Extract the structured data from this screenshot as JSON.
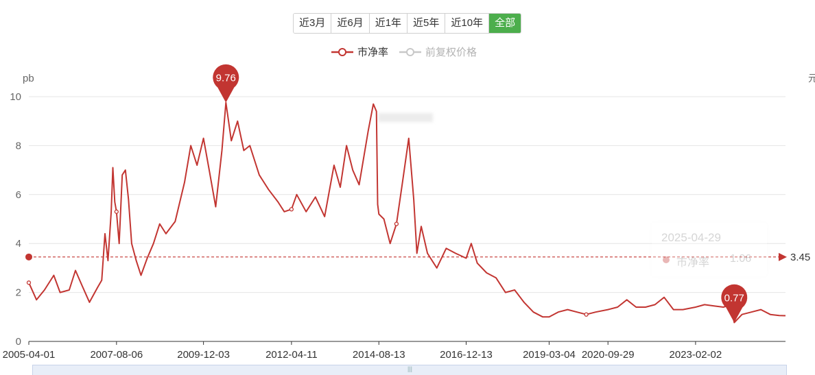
{
  "range_buttons": [
    {
      "label": "近3月",
      "active": false
    },
    {
      "label": "近6月",
      "active": false
    },
    {
      "label": "近1年",
      "active": false
    },
    {
      "label": "近5年",
      "active": false
    },
    {
      "label": "近10年",
      "active": false
    },
    {
      "label": "全部",
      "active": true
    }
  ],
  "legend": {
    "pb_label": "市净率",
    "price_label": "前复权价格"
  },
  "right_axis_fragment": "元",
  "tooltip": {
    "date": "2025-04-29",
    "series_name": "市净率",
    "value": "1.06"
  },
  "colors": {
    "series": "#c23531",
    "inactive": "#b3b3b3",
    "active_button": "#4cae4c",
    "grid": "#e4e4e4"
  },
  "chart_data": {
    "type": "line",
    "ylabel": "pb",
    "ylim": [
      0,
      10
    ],
    "yticks": [
      "0",
      "2",
      "4",
      "6",
      "8",
      "10"
    ],
    "x_tick_labels": [
      "2005-04-01",
      "2007-08-06",
      "2009-12-03",
      "2012-04-11",
      "2014-08-13",
      "2016-12-13",
      "2019-03-04",
      "2020-09-29",
      "2023-02-02"
    ],
    "x_range": [
      "2005-04-01",
      "2025-06-30"
    ],
    "grid": true,
    "legend_position": "top-center",
    "series": [
      {
        "name": "市净率",
        "points": [
          [
            "2005-04-01",
            2.4
          ],
          [
            "2005-06-15",
            1.7
          ],
          [
            "2005-09-01",
            2.1
          ],
          [
            "2005-12-01",
            2.7
          ],
          [
            "2006-02-01",
            2.0
          ],
          [
            "2006-05-01",
            2.1
          ],
          [
            "2006-07-01",
            2.9
          ],
          [
            "2006-09-01",
            2.3
          ],
          [
            "2006-11-15",
            1.6
          ],
          [
            "2007-02-01",
            2.2
          ],
          [
            "2007-03-15",
            2.5
          ],
          [
            "2007-04-15",
            4.4
          ],
          [
            "2007-05-15",
            3.3
          ],
          [
            "2007-06-15",
            5.3
          ],
          [
            "2007-07-01",
            7.1
          ],
          [
            "2007-07-20",
            5.7
          ],
          [
            "2007-08-06",
            5.3
          ],
          [
            "2007-09-01",
            4.0
          ],
          [
            "2007-10-01",
            6.8
          ],
          [
            "2007-11-01",
            7.0
          ],
          [
            "2007-12-01",
            5.8
          ],
          [
            "2008-01-01",
            4.0
          ],
          [
            "2008-02-15",
            3.3
          ],
          [
            "2008-04-01",
            2.7
          ],
          [
            "2008-06-01",
            3.4
          ],
          [
            "2008-08-01",
            4.0
          ],
          [
            "2008-10-01",
            4.8
          ],
          [
            "2008-12-01",
            4.4
          ],
          [
            "2009-03-01",
            4.9
          ],
          [
            "2009-06-01",
            6.5
          ],
          [
            "2009-08-01",
            8.0
          ],
          [
            "2009-10-01",
            7.2
          ],
          [
            "2009-12-03",
            8.3
          ],
          [
            "2010-02-01",
            6.9
          ],
          [
            "2010-04-01",
            5.5
          ],
          [
            "2010-06-01",
            7.8
          ],
          [
            "2010-07-10",
            9.76
          ],
          [
            "2010-09-01",
            8.2
          ],
          [
            "2010-11-01",
            9.0
          ],
          [
            "2011-01-01",
            7.8
          ],
          [
            "2011-03-01",
            8.0
          ],
          [
            "2011-06-01",
            6.8
          ],
          [
            "2011-09-01",
            6.2
          ],
          [
            "2011-12-01",
            5.7
          ],
          [
            "2012-02-01",
            5.3
          ],
          [
            "2012-04-11",
            5.4
          ],
          [
            "2012-06-01",
            6.0
          ],
          [
            "2012-09-01",
            5.3
          ],
          [
            "2012-12-01",
            5.9
          ],
          [
            "2013-03-01",
            5.1
          ],
          [
            "2013-06-01",
            7.2
          ],
          [
            "2013-08-01",
            6.3
          ],
          [
            "2013-10-01",
            8.0
          ],
          [
            "2013-12-01",
            7.0
          ],
          [
            "2014-02-01",
            6.4
          ],
          [
            "2014-05-01",
            8.6
          ],
          [
            "2014-06-20",
            9.7
          ],
          [
            "2014-07-20",
            9.4
          ],
          [
            "2014-08-01",
            5.6
          ],
          [
            "2014-08-13",
            5.2
          ],
          [
            "2014-10-01",
            5.0
          ],
          [
            "2014-12-01",
            4.0
          ],
          [
            "2015-02-01",
            4.8
          ],
          [
            "2015-04-01",
            6.5
          ],
          [
            "2015-06-01",
            8.3
          ],
          [
            "2015-07-20",
            5.8
          ],
          [
            "2015-08-20",
            3.6
          ],
          [
            "2015-10-01",
            4.7
          ],
          [
            "2015-12-01",
            3.6
          ],
          [
            "2016-03-01",
            3.0
          ],
          [
            "2016-06-01",
            3.8
          ],
          [
            "2016-09-01",
            3.6
          ],
          [
            "2016-12-13",
            3.4
          ],
          [
            "2017-02-01",
            4.0
          ],
          [
            "2017-04-01",
            3.2
          ],
          [
            "2017-07-01",
            2.8
          ],
          [
            "2017-10-01",
            2.6
          ],
          [
            "2018-01-01",
            2.0
          ],
          [
            "2018-04-01",
            2.1
          ],
          [
            "2018-07-01",
            1.6
          ],
          [
            "2018-10-01",
            1.2
          ],
          [
            "2019-01-01",
            1.0
          ],
          [
            "2019-03-04",
            1.0
          ],
          [
            "2019-06-01",
            1.2
          ],
          [
            "2019-09-01",
            1.3
          ],
          [
            "2019-12-01",
            1.2
          ],
          [
            "2020-03-01",
            1.1
          ],
          [
            "2020-06-01",
            1.2
          ],
          [
            "2020-09-29",
            1.3
          ],
          [
            "2021-01-01",
            1.4
          ],
          [
            "2021-04-01",
            1.7
          ],
          [
            "2021-07-01",
            1.4
          ],
          [
            "2021-10-01",
            1.4
          ],
          [
            "2022-01-01",
            1.5
          ],
          [
            "2022-04-01",
            1.8
          ],
          [
            "2022-07-01",
            1.3
          ],
          [
            "2022-10-01",
            1.3
          ],
          [
            "2023-02-02",
            1.4
          ],
          [
            "2023-05-01",
            1.5
          ],
          [
            "2023-08-01",
            1.45
          ],
          [
            "2023-11-01",
            1.4
          ],
          [
            "2024-01-10",
            1.5
          ],
          [
            "2024-02-15",
            0.77
          ],
          [
            "2024-05-01",
            1.1
          ],
          [
            "2024-08-01",
            1.2
          ],
          [
            "2024-11-01",
            1.3
          ],
          [
            "2025-02-01",
            1.1
          ],
          [
            "2025-04-29",
            1.06
          ],
          [
            "2025-06-30",
            1.05
          ]
        ]
      }
    ],
    "mark_points": [
      {
        "label": "9.76",
        "date": "2010-07-10",
        "value": 9.76
      },
      {
        "label": "0.77",
        "date": "2024-02-15",
        "value": 0.77
      }
    ],
    "mark_line": {
      "label": "3.45",
      "value": 3.45
    }
  }
}
